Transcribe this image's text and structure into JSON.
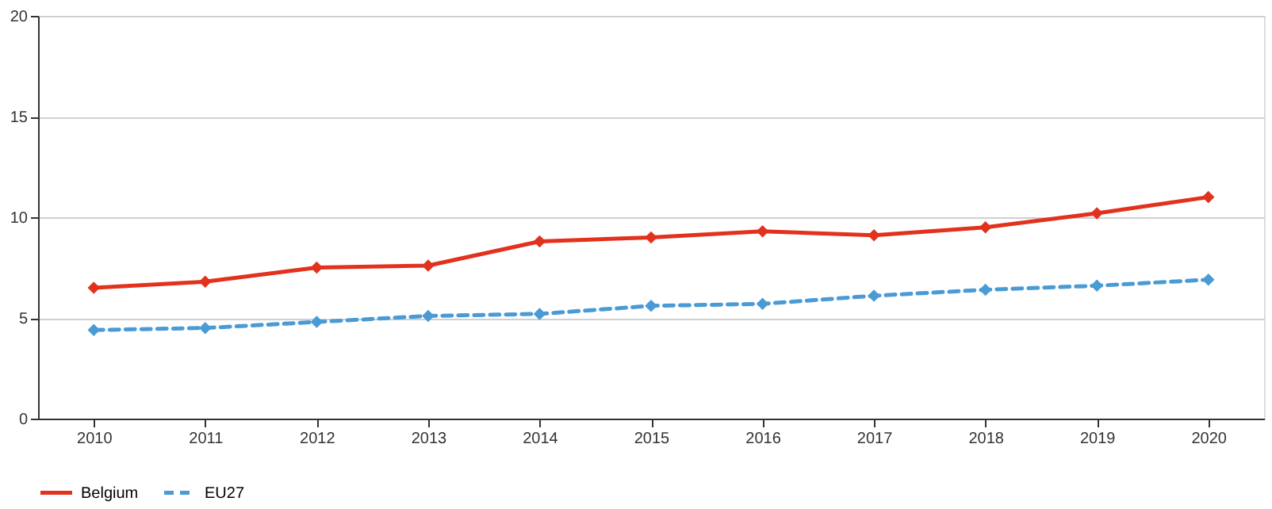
{
  "chart_data": {
    "type": "line",
    "categories": [
      "2010",
      "2011",
      "2012",
      "2013",
      "2014",
      "2015",
      "2016",
      "2017",
      "2018",
      "2019",
      "2020"
    ],
    "series": [
      {
        "name": "Belgium",
        "color": "#e2311d",
        "line_style": "solid",
        "values": [
          6.5,
          6.8,
          7.5,
          7.6,
          8.8,
          9.0,
          9.3,
          9.1,
          9.5,
          10.2,
          11.0
        ]
      },
      {
        "name": "EU27",
        "color": "#4a9bd5",
        "line_style": "dashed",
        "values": [
          4.4,
          4.5,
          4.8,
          5.1,
          5.2,
          5.6,
          5.7,
          6.1,
          6.4,
          6.6,
          6.9
        ]
      }
    ],
    "ylim": [
      0,
      20
    ],
    "yticks": [
      0,
      5,
      10,
      15,
      20
    ],
    "grid": "y",
    "legend": "bottom",
    "marker": "diamond"
  }
}
